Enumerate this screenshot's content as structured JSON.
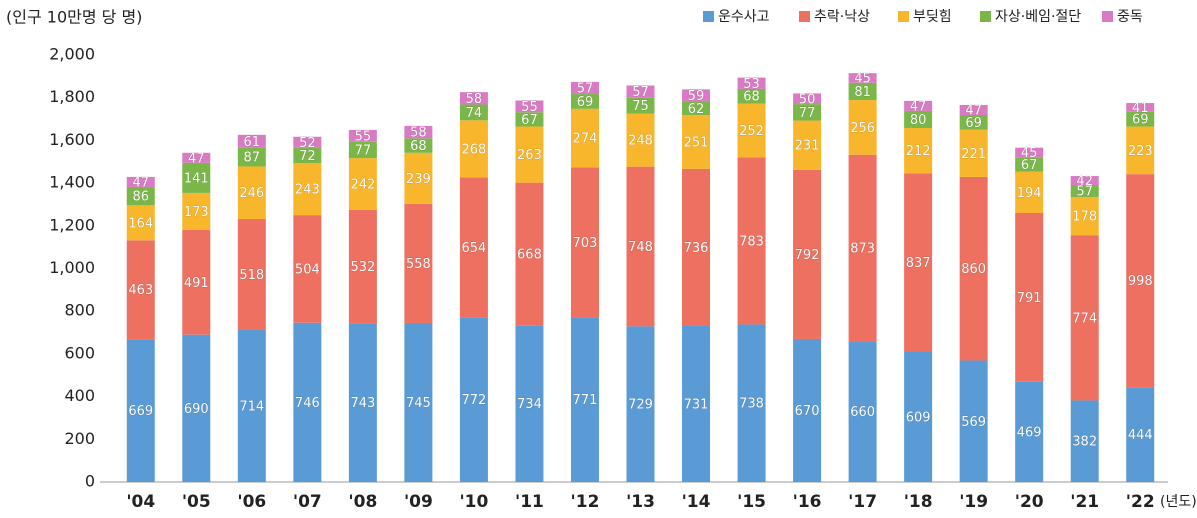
{
  "chart_data": {
    "type": "stacked_bar",
    "y_axis_label": "(인구 10만명 당 명)",
    "x_axis_label": "(년도)",
    "categories": [
      "'04",
      "'05",
      "'06",
      "'07",
      "'08",
      "'09",
      "'10",
      "'11",
      "'12",
      "'13",
      "'14",
      "'15",
      "'16",
      "'17",
      "'18",
      "'19",
      "'20",
      "'21",
      "'22"
    ],
    "series": [
      {
        "name": "운수사고",
        "color": "#5b9bd5",
        "values": [
          669,
          690,
          714,
          746,
          743,
          745,
          772,
          734,
          771,
          729,
          731,
          738,
          670,
          660,
          609,
          569,
          469,
          382,
          444
        ]
      },
      {
        "name": "추락·낙상",
        "color": "#ed7060",
        "values": [
          463,
          491,
          518,
          504,
          532,
          558,
          654,
          668,
          703,
          748,
          736,
          783,
          792,
          873,
          837,
          860,
          791,
          774,
          998
        ]
      },
      {
        "name": "부딪힘",
        "color": "#f8b62d",
        "values": [
          164,
          173,
          246,
          243,
          242,
          239,
          268,
          263,
          274,
          248,
          251,
          252,
          231,
          256,
          212,
          221,
          194,
          178,
          223
        ]
      },
      {
        "name": "자상·베임·절단",
        "color": "#7ab648",
        "values": [
          86,
          141,
          87,
          72,
          77,
          68,
          74,
          67,
          69,
          75,
          62,
          68,
          77,
          81,
          80,
          69,
          67,
          57,
          69
        ]
      },
      {
        "name": "중독",
        "color": "#d97bc2",
        "values": [
          47,
          47,
          61,
          52,
          55,
          58,
          58,
          55,
          57,
          57,
          59,
          53,
          50,
          45,
          47,
          47,
          45,
          42,
          41
        ]
      }
    ],
    "ylim": [
      0,
      2000
    ],
    "yticks": [
      0,
      200,
      400,
      600,
      800,
      {
        "value": 1000,
        "label": "1,000"
      },
      {
        "value": 1200,
        "label": "1,200"
      },
      {
        "value": 1400,
        "label": "1,400"
      },
      {
        "value": 1600,
        "label": "1,600"
      },
      {
        "value": 1800,
        "label": "1,800"
      },
      {
        "value": 2000,
        "label": "2,000"
      }
    ],
    "grid": false,
    "legend": "top-right"
  }
}
